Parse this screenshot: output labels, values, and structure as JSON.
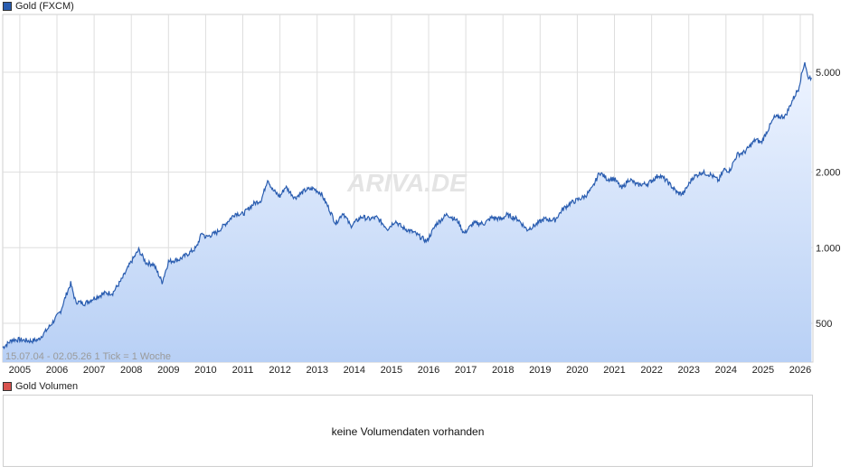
{
  "colors": {
    "series": "#2a5db0",
    "fill_top": "#eef4ff",
    "fill_bottom": "#b8d0f5",
    "volume": "#d9534f",
    "grid": "#dedede"
  },
  "price_legend": {
    "label": "Gold (FXCM)"
  },
  "volume_legend": {
    "label": "Gold Volumen"
  },
  "watermark": "ARIVA.DE",
  "info": "15.07.04 - 02.05.26   1 Tick = 1 Woche",
  "volume_message": "keine Volumendaten vorhanden",
  "chart_data": {
    "type": "area",
    "title": "",
    "scale": "log",
    "ylim": [
      350,
      8500
    ],
    "xlim": [
      2004.54,
      2026.34
    ],
    "grid": true,
    "y_ticks": [
      {
        "value": 500,
        "label": "500"
      },
      {
        "value": 1000,
        "label": "1.000"
      },
      {
        "value": 2000,
        "label": "2.000"
      },
      {
        "value": 5000,
        "label": "5.000"
      }
    ],
    "x_ticks": [
      {
        "value": 2005,
        "label": "2005"
      },
      {
        "value": 2006,
        "label": "2006"
      },
      {
        "value": 2007,
        "label": "2007"
      },
      {
        "value": 2008,
        "label": "2008"
      },
      {
        "value": 2009,
        "label": "2009"
      },
      {
        "value": 2010,
        "label": "2010"
      },
      {
        "value": 2011,
        "label": "2011"
      },
      {
        "value": 2012,
        "label": "2012"
      },
      {
        "value": 2013,
        "label": "2013"
      },
      {
        "value": 2014,
        "label": "2014"
      },
      {
        "value": 2015,
        "label": "2015"
      },
      {
        "value": 2016,
        "label": "2016"
      },
      {
        "value": 2017,
        "label": "2017"
      },
      {
        "value": 2018,
        "label": "2018"
      },
      {
        "value": 2019,
        "label": "2019"
      },
      {
        "value": 2020,
        "label": "2020"
      },
      {
        "value": 2021,
        "label": "2021"
      },
      {
        "value": 2022,
        "label": "2022"
      },
      {
        "value": 2023,
        "label": "2023"
      },
      {
        "value": 2024,
        "label": "2024"
      },
      {
        "value": 2025,
        "label": "2025"
      },
      {
        "value": 2026,
        "label": "2026"
      }
    ],
    "series": [
      {
        "name": "Gold (FXCM)",
        "points": [
          [
            2004.54,
            400
          ],
          [
            2004.8,
            430
          ],
          [
            2005.0,
            430
          ],
          [
            2005.3,
            425
          ],
          [
            2005.5,
            430
          ],
          [
            2005.75,
            475
          ],
          [
            2005.95,
            520
          ],
          [
            2006.1,
            560
          ],
          [
            2006.25,
            650
          ],
          [
            2006.37,
            720
          ],
          [
            2006.5,
            610
          ],
          [
            2006.75,
            600
          ],
          [
            2007.0,
            630
          ],
          [
            2007.3,
            660
          ],
          [
            2007.5,
            660
          ],
          [
            2007.75,
            750
          ],
          [
            2008.0,
            880
          ],
          [
            2008.2,
            980
          ],
          [
            2008.4,
            870
          ],
          [
            2008.6,
            860
          ],
          [
            2008.83,
            730
          ],
          [
            2009.0,
            880
          ],
          [
            2009.3,
            900
          ],
          [
            2009.5,
            940
          ],
          [
            2009.75,
            1000
          ],
          [
            2009.9,
            1150
          ],
          [
            2010.0,
            1100
          ],
          [
            2010.3,
            1150
          ],
          [
            2010.5,
            1230
          ],
          [
            2010.8,
            1370
          ],
          [
            2011.0,
            1360
          ],
          [
            2011.3,
            1500
          ],
          [
            2011.5,
            1550
          ],
          [
            2011.67,
            1880
          ],
          [
            2011.8,
            1700
          ],
          [
            2012.0,
            1600
          ],
          [
            2012.15,
            1750
          ],
          [
            2012.4,
            1580
          ],
          [
            2012.7,
            1700
          ],
          [
            2012.9,
            1720
          ],
          [
            2013.1,
            1650
          ],
          [
            2013.3,
            1450
          ],
          [
            2013.5,
            1250
          ],
          [
            2013.7,
            1380
          ],
          [
            2013.9,
            1220
          ],
          [
            2014.2,
            1330
          ],
          [
            2014.4,
            1300
          ],
          [
            2014.6,
            1320
          ],
          [
            2014.9,
            1190
          ],
          [
            2015.1,
            1280
          ],
          [
            2015.3,
            1200
          ],
          [
            2015.6,
            1150
          ],
          [
            2015.95,
            1060
          ],
          [
            2016.2,
            1240
          ],
          [
            2016.5,
            1360
          ],
          [
            2016.8,
            1270
          ],
          [
            2016.95,
            1140
          ],
          [
            2017.2,
            1250
          ],
          [
            2017.5,
            1250
          ],
          [
            2017.7,
            1320
          ],
          [
            2017.95,
            1300
          ],
          [
            2018.1,
            1350
          ],
          [
            2018.4,
            1300
          ],
          [
            2018.65,
            1180
          ],
          [
            2018.9,
            1240
          ],
          [
            2019.1,
            1300
          ],
          [
            2019.4,
            1290
          ],
          [
            2019.6,
            1420
          ],
          [
            2019.8,
            1500
          ],
          [
            2020.0,
            1550
          ],
          [
            2020.2,
            1600
          ],
          [
            2020.4,
            1720
          ],
          [
            2020.6,
            2000
          ],
          [
            2020.8,
            1880
          ],
          [
            2021.0,
            1880
          ],
          [
            2021.2,
            1720
          ],
          [
            2021.4,
            1880
          ],
          [
            2021.6,
            1780
          ],
          [
            2021.9,
            1800
          ],
          [
            2022.2,
            1950
          ],
          [
            2022.4,
            1850
          ],
          [
            2022.7,
            1650
          ],
          [
            2022.85,
            1640
          ],
          [
            2023.1,
            1900
          ],
          [
            2023.35,
            2000
          ],
          [
            2023.6,
            1950
          ],
          [
            2023.8,
            1850
          ],
          [
            2023.95,
            2050
          ],
          [
            2024.1,
            2030
          ],
          [
            2024.3,
            2350
          ],
          [
            2024.5,
            2400
          ],
          [
            2024.8,
            2700
          ],
          [
            2024.95,
            2620
          ],
          [
            2025.1,
            2900
          ],
          [
            2025.3,
            3300
          ],
          [
            2025.6,
            3350
          ],
          [
            2025.8,
            3900
          ],
          [
            2025.95,
            4300
          ],
          [
            2026.05,
            5000
          ],
          [
            2026.12,
            5500
          ],
          [
            2026.2,
            4800
          ],
          [
            2026.3,
            4750
          ]
        ]
      }
    ]
  }
}
